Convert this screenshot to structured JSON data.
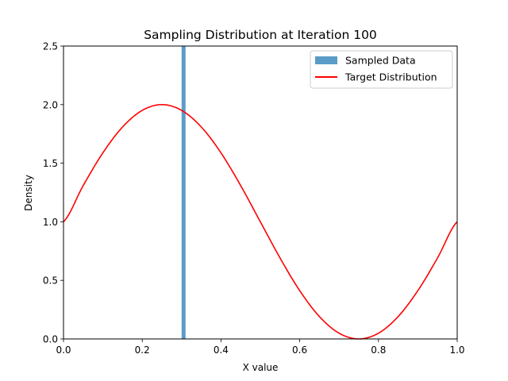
{
  "chart_data": {
    "type": "bar",
    "title": "Sampling Distribution at Iteration 100",
    "xlabel": "X value",
    "ylabel": "Density",
    "xlim": [
      0.0,
      1.0
    ],
    "ylim": [
      0.0,
      2.5
    ],
    "xticks": [
      "0.0",
      "0.2",
      "0.4",
      "0.6",
      "0.8",
      "1.0"
    ],
    "xtick_values": [
      0.0,
      0.2,
      0.4,
      0.6,
      0.8,
      1.0
    ],
    "yticks": [
      "0.0",
      "0.5",
      "1.0",
      "1.5",
      "2.0",
      "2.5"
    ],
    "ytick_values": [
      0.0,
      0.5,
      1.0,
      1.5,
      2.0,
      2.5
    ],
    "grid": false,
    "legend_position": "top-right",
    "series": [
      {
        "name": "Sampled Data",
        "type": "bar",
        "color": "#5b9bc8",
        "bars": [
          {
            "x_start": 0.3,
            "x_end": 0.31,
            "height": 2.5
          }
        ]
      },
      {
        "name": "Target Distribution",
        "type": "line",
        "color": "#ff0000",
        "x": [
          0.0,
          0.05,
          0.1,
          0.15,
          0.2,
          0.25,
          0.3,
          0.35,
          0.4,
          0.45,
          0.5,
          0.55,
          0.6,
          0.65,
          0.7,
          0.75,
          0.8,
          0.85,
          0.9,
          0.95,
          1.0
        ],
        "y": [
          1.0,
          1.309,
          1.588,
          1.809,
          1.951,
          2.0,
          1.951,
          1.809,
          1.588,
          1.309,
          1.0,
          0.691,
          0.412,
          0.191,
          0.049,
          0.0,
          0.049,
          0.191,
          0.412,
          0.691,
          1.0
        ]
      }
    ]
  }
}
